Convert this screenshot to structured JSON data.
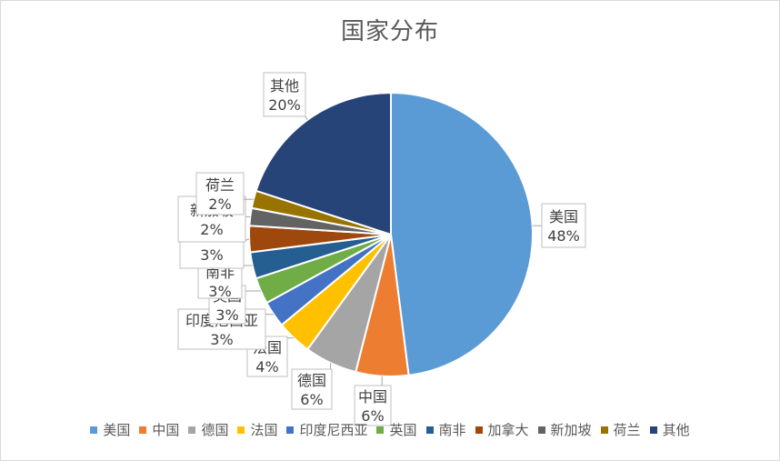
{
  "chart_data": {
    "type": "pie",
    "title": "国家分布",
    "categories": [
      "美国",
      "中国",
      "德国",
      "法国",
      "印度尼西亚",
      "英国",
      "南非",
      "加拿大",
      "新加坡",
      "荷兰",
      "其他"
    ],
    "values": [
      48,
      6,
      6,
      4,
      3,
      3,
      3,
      3,
      2,
      2,
      20
    ],
    "data_labels": [
      "48%",
      "6%",
      "6%",
      "4%",
      "3%",
      "3%",
      "3%",
      "3%",
      "2%",
      "2%",
      "20%"
    ],
    "colors": [
      "#5b9bd5",
      "#ed7d31",
      "#a5a5a5",
      "#ffc000",
      "#4472c4",
      "#70ad47",
      "#255e91",
      "#9e480e",
      "#636363",
      "#997300",
      "#264478"
    ],
    "legend_position": "bottom",
    "start": "12 o'clock, clockwise"
  }
}
